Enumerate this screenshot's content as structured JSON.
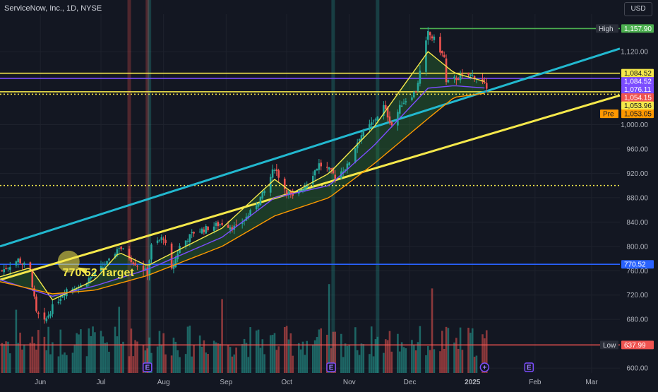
{
  "header": {
    "symbol_title": "ServiceNow, Inc., 1D, NYSE",
    "currency": "USD"
  },
  "colors": {
    "background": "#131722",
    "grid": "#1e222d",
    "up_candle": "#26a69a",
    "down_candle": "#ef5350",
    "trend_channel_upper": "#22b8cf",
    "trend_channel_lower": "#f5e84b",
    "target_line": "#2962ff",
    "high_line": "#4caf50",
    "low_line": "#ef5350",
    "ema_fast": "#f5e84b",
    "ema_mid": "#7c4dff",
    "ema_slow": "#ff9800"
  },
  "chart_data": {
    "type": "candlestick",
    "title": "ServiceNow, Inc., 1D, NYSE",
    "x_tick_labels": [
      "Jun",
      "Jul",
      "Aug",
      "Sep",
      "Oct",
      "Nov",
      "Dec",
      "2025",
      "Feb",
      "Mar"
    ],
    "y_tick_labels": [
      "1,120.00",
      "1,000.00",
      "960.00",
      "920.00",
      "880.00",
      "840.00",
      "800.00",
      "760.00",
      "720.00",
      "680.00",
      "600.00"
    ],
    "ylim": [
      592,
      1170
    ],
    "x_range": [
      "2024-05-12",
      "2025-03-15"
    ],
    "grid": true,
    "price_labels": [
      {
        "name": "High",
        "value": 1157.9,
        "text": "1,157.90",
        "color": "#4caf50",
        "tag": "High"
      },
      {
        "name": "hline-a",
        "value": 1084.52,
        "text": "1,084.52",
        "color": "#f5e84b",
        "tag": ""
      },
      {
        "name": "ema-fast",
        "value": 1084.52,
        "text": "1,084.52",
        "color": "#7c4dff",
        "tag": ""
      },
      {
        "name": "ema-mid",
        "value": 1076.11,
        "text": "1,076.11",
        "color": "#7c4dff",
        "tag": ""
      },
      {
        "name": "last",
        "value": 1054.15,
        "text": "1,054.15",
        "color": "#ef5350",
        "tag": ""
      },
      {
        "name": "hline-b",
        "value": 1053.96,
        "text": "1,053.96",
        "color": "#f5e84b",
        "tag": ""
      },
      {
        "name": "pre",
        "value": 1053.05,
        "text": "1,053.05",
        "color": "#ff9800",
        "tag": "Pre"
      },
      {
        "name": "target",
        "value": 770.52,
        "text": "770.52",
        "color": "#2962ff",
        "tag": ""
      },
      {
        "name": "Low",
        "value": 637.99,
        "text": "637.99",
        "color": "#ef5350",
        "tag": "Low"
      }
    ],
    "horizontal_lines": [
      {
        "value": 1084.52,
        "color": "#f5e84b",
        "style": "solid"
      },
      {
        "value": 1076.11,
        "color": "#7c4dff",
        "style": "solid"
      },
      {
        "value": 1053.96,
        "color": "#f5e84b",
        "style": "solid"
      },
      {
        "value": 1050,
        "color": "#f5e84b",
        "style": "dotted"
      },
      {
        "value": 900,
        "color": "#f5e84b",
        "style": "dotted"
      },
      {
        "value": 770.52,
        "color": "#2962ff",
        "style": "solid"
      },
      {
        "value": 1157.9,
        "color": "#4caf50",
        "style": "solid",
        "start": "2024-12-06"
      },
      {
        "value": 637.99,
        "color": "#ef5350",
        "style": "solid"
      }
    ],
    "trend_lines": [
      {
        "name": "channel-upper",
        "color": "#22b8cf",
        "from": [
          "2024-05-12",
          800
        ],
        "to": [
          "2025-03-15",
          1125
        ]
      },
      {
        "name": "channel-lower",
        "color": "#f5e84b",
        "from": [
          "2024-05-12",
          745
        ],
        "to": [
          "2025-03-15",
          1048
        ]
      }
    ],
    "vertical_bands": [
      {
        "date": "2024-07-15",
        "color": "#ef5350"
      },
      {
        "date": "2024-07-24",
        "color": "#ef5350"
      },
      {
        "date": "2024-07-25",
        "color": "#26a69a"
      },
      {
        "date": "2024-10-24",
        "color": "#26a69a"
      },
      {
        "date": "2024-11-15",
        "color": "#26a69a"
      }
    ],
    "close_path": [
      [
        "2024-05-12",
        758
      ],
      [
        "2024-05-21",
        778
      ],
      [
        "2024-05-27",
        760
      ],
      [
        "2024-05-30",
        690
      ],
      [
        "2024-06-03",
        675
      ],
      [
        "2024-06-07",
        700
      ],
      [
        "2024-06-14",
        730
      ],
      [
        "2024-06-21",
        735
      ],
      [
        "2024-06-28",
        755
      ],
      [
        "2024-07-05",
        775
      ],
      [
        "2024-07-10",
        800
      ],
      [
        "2024-07-17",
        775
      ],
      [
        "2024-07-24",
        757
      ],
      [
        "2024-07-26",
        800
      ],
      [
        "2024-08-01",
        815
      ],
      [
        "2024-08-05",
        760
      ],
      [
        "2024-08-09",
        800
      ],
      [
        "2024-08-16",
        823
      ],
      [
        "2024-08-23",
        830
      ],
      [
        "2024-08-30",
        838
      ],
      [
        "2024-09-06",
        830
      ],
      [
        "2024-09-13",
        855
      ],
      [
        "2024-09-20",
        890
      ],
      [
        "2024-09-25",
        930
      ],
      [
        "2024-09-30",
        895
      ],
      [
        "2024-10-04",
        880
      ],
      [
        "2024-10-10",
        900
      ],
      [
        "2024-10-17",
        935
      ],
      [
        "2024-10-22",
        925
      ],
      [
        "2024-10-25",
        915
      ],
      [
        "2024-10-31",
        932
      ],
      [
        "2024-11-06",
        980
      ],
      [
        "2024-11-13",
        1005
      ],
      [
        "2024-11-18",
        1030
      ],
      [
        "2024-11-22",
        1000
      ],
      [
        "2024-11-27",
        1035
      ],
      [
        "2024-12-04",
        1055
      ],
      [
        "2024-12-10",
        1150
      ],
      [
        "2024-12-13",
        1140
      ],
      [
        "2024-12-18",
        1110
      ],
      [
        "2024-12-19",
        1068
      ],
      [
        "2024-12-23",
        1075
      ],
      [
        "2024-12-30",
        1082
      ],
      [
        "2025-01-03",
        1078
      ],
      [
        "2025-01-07",
        1065
      ],
      [
        "2025-01-08",
        1054.15
      ]
    ],
    "moving_averages": [
      {
        "name": "ema-fast",
        "color": "#f5e84b",
        "points": [
          [
            "2024-05-12",
            750
          ],
          [
            "2024-05-27",
            765
          ],
          [
            "2024-06-07",
            712
          ],
          [
            "2024-06-28",
            745
          ],
          [
            "2024-07-10",
            790
          ],
          [
            "2024-07-24",
            768
          ],
          [
            "2024-08-09",
            795
          ],
          [
            "2024-08-30",
            830
          ],
          [
            "2024-09-25",
            910
          ],
          [
            "2024-10-04",
            888
          ],
          [
            "2024-10-22",
            920
          ],
          [
            "2024-11-13",
            995
          ],
          [
            "2024-12-10",
            1120
          ],
          [
            "2024-12-23",
            1085
          ],
          [
            "2025-01-08",
            1070
          ]
        ]
      },
      {
        "name": "ema-mid",
        "color": "#7c4dff",
        "points": [
          [
            "2024-05-12",
            745
          ],
          [
            "2024-06-07",
            718
          ],
          [
            "2024-06-28",
            735
          ],
          [
            "2024-07-24",
            762
          ],
          [
            "2024-08-30",
            815
          ],
          [
            "2024-09-25",
            880
          ],
          [
            "2024-10-22",
            900
          ],
          [
            "2024-11-13",
            965
          ],
          [
            "2024-12-10",
            1060
          ],
          [
            "2024-12-23",
            1064
          ],
          [
            "2025-01-08",
            1060
          ]
        ]
      },
      {
        "name": "ema-slow",
        "color": "#ff9800",
        "points": [
          [
            "2024-05-12",
            742
          ],
          [
            "2024-06-07",
            722
          ],
          [
            "2024-06-28",
            728
          ],
          [
            "2024-07-24",
            752
          ],
          [
            "2024-08-30",
            800
          ],
          [
            "2024-09-25",
            850
          ],
          [
            "2024-10-22",
            880
          ],
          [
            "2024-11-13",
            935
          ],
          [
            "2024-12-10",
            1010
          ],
          [
            "2024-12-23",
            1045
          ],
          [
            "2025-01-08",
            1052
          ]
        ]
      }
    ],
    "annotations": [
      {
        "name": "target-label",
        "text": "770.52 Target",
        "date": "2024-06-12",
        "value": 751
      },
      {
        "name": "target-marker",
        "text": "",
        "date": "2024-06-15",
        "value": 775
      }
    ],
    "event_markers": [
      {
        "date": "2024-07-24",
        "symbol": "E"
      },
      {
        "date": "2024-10-23",
        "symbol": "E"
      },
      {
        "date": "2025-01-07",
        "symbol": "+"
      },
      {
        "date": "2025-01-29",
        "symbol": "E"
      }
    ],
    "volume": {
      "max_height_fraction": 0.18,
      "color_rule": "candle-direction"
    }
  }
}
